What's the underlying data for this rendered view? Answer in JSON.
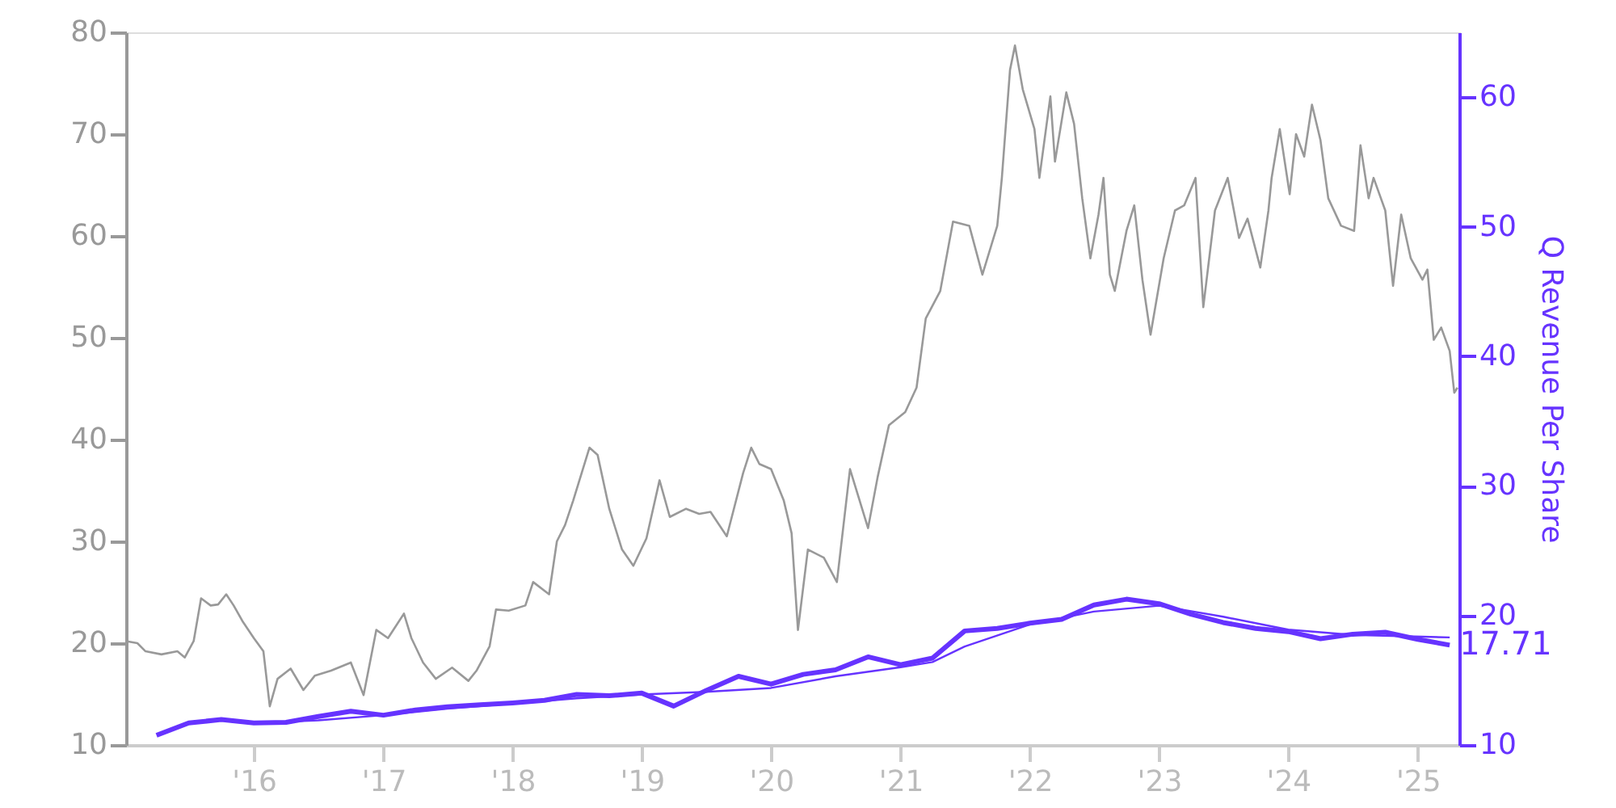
{
  "chart_data": {
    "type": "line",
    "xlim": [
      "2015-01-05",
      "2025-04-28"
    ],
    "xticks": [
      {
        "value": "2016-01-01",
        "label": "'16"
      },
      {
        "value": "2017-01-01",
        "label": "'17"
      },
      {
        "value": "2018-01-01",
        "label": "'18"
      },
      {
        "value": "2019-01-01",
        "label": "'19"
      },
      {
        "value": "2020-01-01",
        "label": "'20"
      },
      {
        "value": "2021-01-01",
        "label": "'21"
      },
      {
        "value": "2022-01-01",
        "label": "'22"
      },
      {
        "value": "2023-01-01",
        "label": "'23"
      },
      {
        "value": "2024-01-01",
        "label": "'24"
      },
      {
        "value": "2025-01-01",
        "label": "'25"
      }
    ],
    "ylim": [
      10,
      80
    ],
    "yticks": [
      10,
      20,
      30,
      40,
      50,
      60,
      70,
      80
    ],
    "y2lim": [
      10,
      65
    ],
    "y2ticks": [
      10,
      20,
      30,
      40,
      50,
      60
    ],
    "y2label": "Q Revenue Per Share",
    "series": [
      {
        "color": "#999999",
        "x": [
          "2015-01-05",
          "2015-02-06",
          "2015-03-01",
          "2015-04-15",
          "2015-05-30",
          "2015-06-20",
          "2015-07-15",
          "2015-08-05",
          "2015-09-01",
          "2015-09-22",
          "2015-10-15",
          "2015-11-05",
          "2015-12-01",
          "2016-01-01",
          "2016-01-28",
          "2016-02-15",
          "2016-03-08",
          "2016-04-14",
          "2016-05-20",
          "2016-06-21",
          "2016-08-06",
          "2016-10-01",
          "2016-11-06",
          "2016-12-12",
          "2017-01-14",
          "2017-02-28",
          "2017-03-21",
          "2017-04-23",
          "2017-05-29",
          "2017-07-14",
          "2017-08-29",
          "2017-09-21",
          "2017-10-28",
          "2017-11-15",
          "2017-12-21",
          "2018-02-06",
          "2018-02-28",
          "2018-04-14",
          "2018-05-06",
          "2018-05-29",
          "2018-06-21",
          "2018-08-06",
          "2018-08-29",
          "2018-10-01",
          "2018-11-06",
          "2018-12-08",
          "2019-01-14",
          "2019-02-20",
          "2019-03-21",
          "2019-05-06",
          "2019-06-12",
          "2019-07-14",
          "2019-08-29",
          "2019-10-14",
          "2019-11-06",
          "2019-11-29",
          "2020-01-01",
          "2020-02-06",
          "2020-02-28",
          "2020-03-17",
          "2020-04-14",
          "2020-05-29",
          "2020-07-05",
          "2020-08-11",
          "2020-10-01",
          "2020-10-28",
          "2020-11-29",
          "2021-01-14",
          "2021-02-15",
          "2021-03-13",
          "2021-04-23",
          "2021-05-29",
          "2021-07-14",
          "2021-08-20",
          "2021-10-01",
          "2021-10-14",
          "2021-11-06",
          "2021-11-20",
          "2021-12-12",
          "2022-01-14",
          "2022-01-28",
          "2022-02-28",
          "2022-03-13",
          "2022-04-14",
          "2022-05-06",
          "2022-05-29",
          "2022-06-21",
          "2022-07-14",
          "2022-07-28",
          "2022-08-15",
          "2022-08-29",
          "2022-10-01",
          "2022-10-23",
          "2022-11-15",
          "2022-12-08",
          "2023-01-14",
          "2023-02-15",
          "2023-03-13",
          "2023-04-14",
          "2023-05-06",
          "2023-06-08",
          "2023-07-14",
          "2023-08-15",
          "2023-09-08",
          "2023-10-14",
          "2023-11-06",
          "2023-11-15",
          "2023-12-08",
          "2024-01-05",
          "2024-01-23",
          "2024-02-15",
          "2024-03-08",
          "2024-04-01",
          "2024-04-23",
          "2024-05-29",
          "2024-07-05",
          "2024-07-23",
          "2024-08-15",
          "2024-08-29",
          "2024-10-01",
          "2024-10-23",
          "2024-11-15",
          "2024-12-12",
          "2025-01-14",
          "2025-01-28",
          "2025-02-15",
          "2025-03-08",
          "2025-04-01",
          "2025-04-14",
          "2025-04-23"
        ],
        "values": [
          20.2,
          20.0,
          19.2,
          18.9,
          19.2,
          18.6,
          20.2,
          24.4,
          23.7,
          23.8,
          24.8,
          23.7,
          22.1,
          20.5,
          19.2,
          13.8,
          16.5,
          17.5,
          15.4,
          16.8,
          17.3,
          18.1,
          14.9,
          21.3,
          20.5,
          22.9,
          20.5,
          18.1,
          16.5,
          17.6,
          16.3,
          17.3,
          19.7,
          23.3,
          23.2,
          23.7,
          26.0,
          24.8,
          30.0,
          31.6,
          34.0,
          39.2,
          38.5,
          33.2,
          29.2,
          27.6,
          30.3,
          36.0,
          32.4,
          33.2,
          32.7,
          32.9,
          30.5,
          36.7,
          39.2,
          37.6,
          37.1,
          34.0,
          30.8,
          21.3,
          29.2,
          28.4,
          26.0,
          37.1,
          31.3,
          36.3,
          41.4,
          42.7,
          45.1,
          51.9,
          54.6,
          61.4,
          61.0,
          56.2,
          61.0,
          65.7,
          76.3,
          78.7,
          74.4,
          70.5,
          65.7,
          73.7,
          67.3,
          74.1,
          71.0,
          63.7,
          57.8,
          62.1,
          65.7,
          56.2,
          54.6,
          60.5,
          63.0,
          55.7,
          50.3,
          57.8,
          62.5,
          63.0,
          65.7,
          53.0,
          62.5,
          65.7,
          59.8,
          61.7,
          56.9,
          62.5,
          65.7,
          70.5,
          64.1,
          70.0,
          67.8,
          72.9,
          69.4,
          63.7,
          61.0,
          60.5,
          68.9,
          63.7,
          65.7,
          62.5,
          55.1,
          62.1,
          57.8,
          55.7,
          56.7,
          49.8,
          51.0,
          48.7,
          44.6,
          45.1
        ]
      },
      {
        "color": "#6633ff",
        "axis": "y2",
        "x": [
          "2015-04-01",
          "2015-07-01",
          "2015-10-01",
          "2016-01-01",
          "2016-04-01",
          "2016-07-01",
          "2016-10-01",
          "2017-01-01",
          "2017-04-01",
          "2017-07-01",
          "2017-10-01",
          "2018-01-01",
          "2018-04-01",
          "2018-07-01",
          "2018-10-01",
          "2019-01-01",
          "2019-04-01",
          "2019-07-01",
          "2019-10-01",
          "2020-01-01",
          "2020-04-01",
          "2020-07-01",
          "2020-10-01",
          "2021-01-01",
          "2021-04-01",
          "2021-07-01",
          "2021-10-01",
          "2022-01-01",
          "2022-04-01",
          "2022-07-01",
          "2022-10-01",
          "2023-01-01",
          "2023-04-01",
          "2023-07-01",
          "2023-10-01",
          "2024-01-01",
          "2024-04-01",
          "2024-07-01",
          "2024-10-01",
          "2025-01-01",
          "2025-04-01"
        ],
        "values": [
          10.75,
          11.7,
          11.96,
          11.7,
          11.75,
          12.2,
          12.6,
          12.3,
          12.7,
          12.95,
          13.1,
          13.25,
          13.45,
          13.9,
          13.8,
          14.0,
          13.0,
          14.2,
          15.3,
          14.7,
          15.45,
          15.8,
          16.8,
          16.2,
          16.7,
          18.8,
          19.0,
          19.4,
          19.7,
          20.8,
          21.25,
          20.9,
          20.1,
          19.45,
          19.0,
          18.75,
          18.2,
          18.55,
          18.7,
          18.15,
          17.71
        ],
        "value_labels": [
          null,
          null,
          null,
          null,
          null,
          null,
          null,
          null,
          null,
          null,
          null,
          null,
          null,
          null,
          null,
          null,
          null,
          null,
          null,
          null,
          null,
          null,
          null,
          null,
          null,
          null,
          null,
          null,
          null,
          null,
          null,
          null,
          null,
          null,
          null,
          null,
          null,
          null,
          null,
          null,
          "17.71"
        ]
      },
      {
        "color": "#6633ff",
        "axis": "y2",
        "x": [
          "2016-01-01",
          "2016-07-01",
          "2017-01-01",
          "2017-07-01",
          "2018-01-01",
          "2018-07-01",
          "2019-01-01",
          "2019-07-01",
          "2020-01-01",
          "2020-07-01",
          "2021-01-01",
          "2021-04-01",
          "2021-07-01",
          "2022-01-01",
          "2022-07-01",
          "2023-01-01",
          "2023-07-01",
          "2024-01-01",
          "2024-07-01",
          "2025-04-01"
        ],
        "values": [
          11.7,
          11.9,
          12.3,
          12.8,
          13.2,
          13.6,
          13.9,
          14.1,
          14.4,
          15.3,
          16.0,
          16.4,
          17.6,
          19.3,
          20.3,
          20.75,
          19.9,
          18.9,
          18.5,
          18.3
        ]
      }
    ]
  }
}
